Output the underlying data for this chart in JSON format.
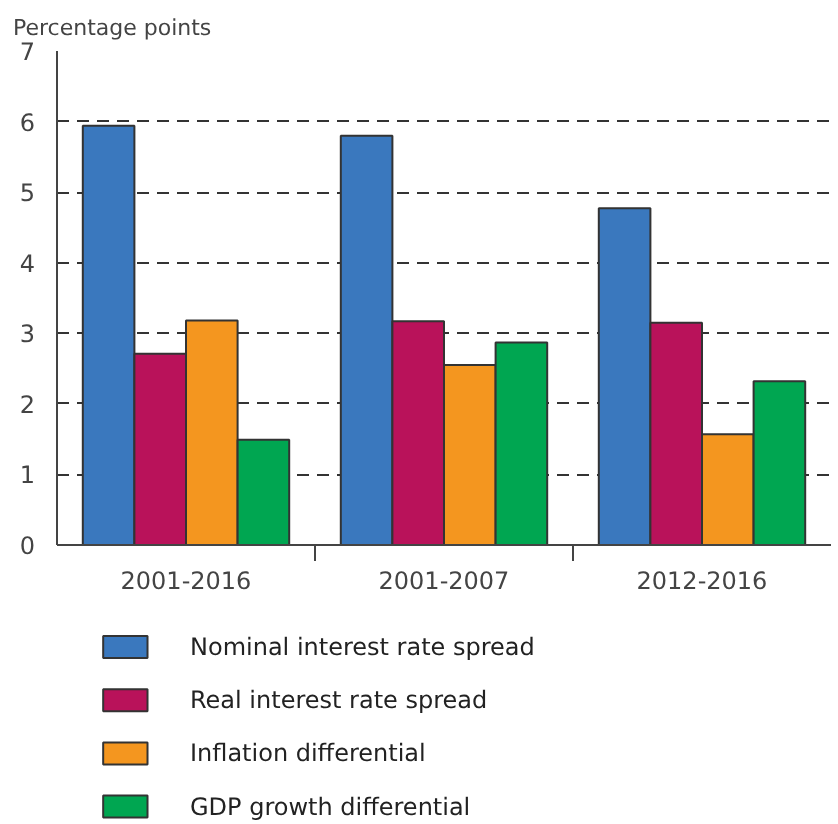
{
  "chart_data": {
    "type": "bar",
    "ylabel": "Percentage points",
    "categories": [
      "2001-2016",
      "2001-2007",
      "2012-2016"
    ],
    "series": [
      {
        "name": "Nominal interest rate spread",
        "color": "#3a78be",
        "values": [
          5.94,
          5.8,
          4.77
        ]
      },
      {
        "name": "Real interest rate spread",
        "color": "#b9125a",
        "values": [
          2.71,
          3.17,
          3.15
        ]
      },
      {
        "name": "Inflation differential",
        "color": "#f4961f",
        "values": [
          3.18,
          2.55,
          1.57
        ]
      },
      {
        "name": "GDP growth differential",
        "color": "#00a651",
        "values": [
          1.49,
          2.87,
          2.32
        ]
      }
    ],
    "ylim": [
      0,
      7
    ],
    "yticks": [
      0,
      1,
      2,
      3,
      4,
      5,
      6,
      7
    ],
    "grid": "y",
    "legend": "bottom"
  }
}
